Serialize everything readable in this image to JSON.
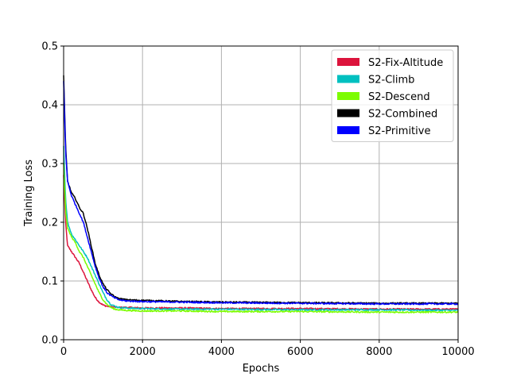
{
  "chart_data": {
    "type": "line",
    "title": "",
    "xlabel": "Epochs",
    "ylabel": "Training Loss",
    "xlim": [
      0,
      10000
    ],
    "ylim": [
      0.0,
      0.5
    ],
    "x_ticks": [
      0,
      2000,
      4000,
      6000,
      8000,
      10000
    ],
    "x_tick_labels": [
      "0",
      "2000",
      "4000",
      "6000",
      "8000",
      "10000"
    ],
    "y_ticks": [
      0.0,
      0.1,
      0.2,
      0.3,
      0.4,
      0.5
    ],
    "y_tick_labels": [
      "0.0",
      "0.1",
      "0.2",
      "0.3",
      "0.4",
      "0.5"
    ],
    "grid": true,
    "legend_position": "top-right",
    "series": [
      {
        "name": "S2-Fix-Altitude",
        "color": "#dc143c",
        "x": [
          0,
          50,
          100,
          200,
          300,
          400,
          500,
          600,
          700,
          800,
          900,
          1000,
          1100,
          1200,
          1400,
          1600,
          2000,
          3000,
          4000,
          6000,
          8000,
          10000
        ],
        "y": [
          0.28,
          0.2,
          0.16,
          0.15,
          0.14,
          0.13,
          0.115,
          0.1,
          0.085,
          0.072,
          0.064,
          0.059,
          0.057,
          0.056,
          0.055,
          0.055,
          0.054,
          0.054,
          0.053,
          0.053,
          0.052,
          0.052
        ]
      },
      {
        "name": "S2-Climb",
        "color": "#00c0c0",
        "x": [
          0,
          50,
          100,
          200,
          300,
          400,
          500,
          600,
          700,
          800,
          900,
          1000,
          1100,
          1200,
          1300,
          1400,
          1600,
          2000,
          3000,
          4000,
          6000,
          8000,
          10000
        ],
        "y": [
          0.33,
          0.24,
          0.2,
          0.18,
          0.17,
          0.16,
          0.15,
          0.14,
          0.125,
          0.11,
          0.095,
          0.08,
          0.068,
          0.06,
          0.057,
          0.055,
          0.054,
          0.053,
          0.052,
          0.052,
          0.051,
          0.051,
          0.05
        ]
      },
      {
        "name": "S2-Descend",
        "color": "#7cfc00",
        "x": [
          0,
          50,
          100,
          200,
          300,
          400,
          500,
          600,
          700,
          800,
          900,
          1000,
          1100,
          1200,
          1300,
          1400,
          1600,
          2000,
          3000,
          4000,
          6000,
          8000,
          10000
        ],
        "y": [
          0.3,
          0.22,
          0.19,
          0.175,
          0.165,
          0.15,
          0.14,
          0.125,
          0.11,
          0.095,
          0.08,
          0.068,
          0.06,
          0.055,
          0.052,
          0.051,
          0.05,
          0.049,
          0.049,
          0.048,
          0.048,
          0.047,
          0.047
        ]
      },
      {
        "name": "S2-Combined",
        "color": "#000000",
        "x": [
          0,
          50,
          100,
          200,
          300,
          400,
          500,
          600,
          700,
          800,
          900,
          1000,
          1100,
          1200,
          1300,
          1400,
          1600,
          2000,
          3000,
          4000,
          6000,
          8000,
          10000
        ],
        "y": [
          0.45,
          0.33,
          0.27,
          0.25,
          0.24,
          0.225,
          0.215,
          0.19,
          0.16,
          0.13,
          0.11,
          0.095,
          0.085,
          0.078,
          0.073,
          0.07,
          0.068,
          0.067,
          0.065,
          0.064,
          0.063,
          0.062,
          0.062
        ]
      },
      {
        "name": "S2-Primitive",
        "color": "#0000ff",
        "x": [
          0,
          50,
          100,
          200,
          300,
          400,
          500,
          600,
          700,
          800,
          900,
          1000,
          1100,
          1200,
          1300,
          1400,
          1600,
          2000,
          3000,
          4000,
          6000,
          8000,
          10000
        ],
        "y": [
          0.44,
          0.32,
          0.27,
          0.245,
          0.23,
          0.215,
          0.2,
          0.175,
          0.15,
          0.125,
          0.105,
          0.09,
          0.08,
          0.075,
          0.071,
          0.068,
          0.066,
          0.065,
          0.064,
          0.063,
          0.062,
          0.061,
          0.061
        ]
      }
    ]
  }
}
